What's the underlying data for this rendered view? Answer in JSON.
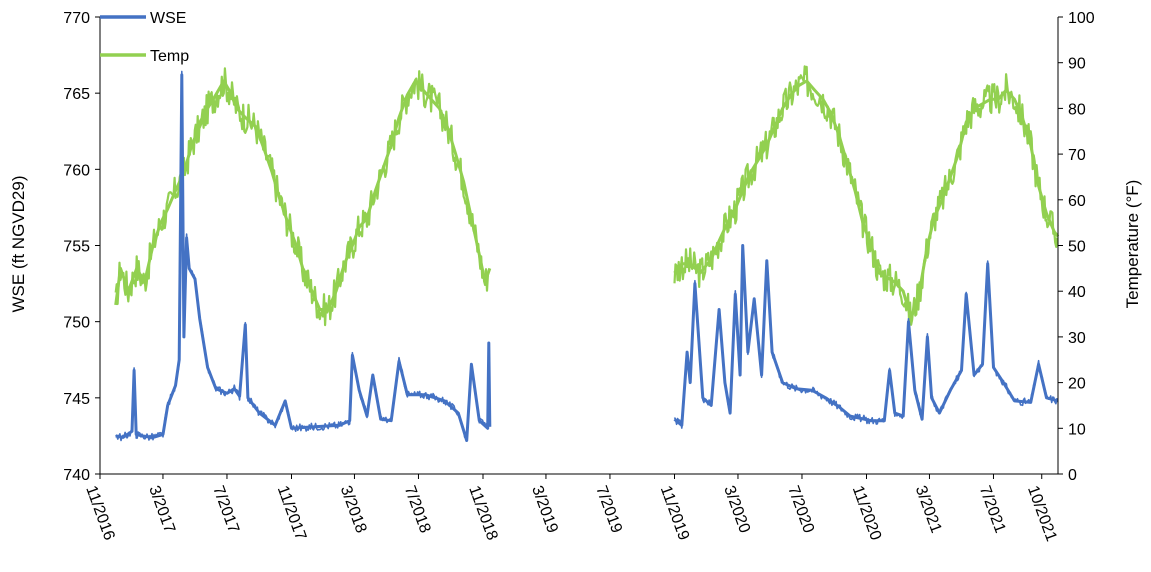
{
  "chart_data": {
    "type": "line",
    "title": "",
    "xlabel": "",
    "ylabel": "WSE (ft NGVD29)",
    "y2label": "Temperature (°F)",
    "x_range": [
      "2016-11-01",
      "2021-11-01"
    ],
    "ylim": [
      740,
      770
    ],
    "y2lim": [
      0,
      100
    ],
    "yticks": [
      740,
      745,
      750,
      755,
      760,
      765,
      770
    ],
    "y2ticks": [
      0,
      10,
      20,
      30,
      40,
      50,
      60,
      70,
      80,
      90,
      100
    ],
    "x_ticks": [
      {
        "label": "11/2016",
        "date": "2016-11-01"
      },
      {
        "label": "3/2017",
        "date": "2017-03-01"
      },
      {
        "label": "7/2017",
        "date": "2017-07-01"
      },
      {
        "label": "11/2017",
        "date": "2017-11-01"
      },
      {
        "label": "3/2018",
        "date": "2018-03-01"
      },
      {
        "label": "7/2018",
        "date": "2018-07-01"
      },
      {
        "label": "11/2018",
        "date": "2018-11-01"
      },
      {
        "label": "3/2019",
        "date": "2019-03-01"
      },
      {
        "label": "7/2019",
        "date": "2019-07-01"
      },
      {
        "label": "11/2019",
        "date": "2019-11-01"
      },
      {
        "label": "3/2020",
        "date": "2020-03-01"
      },
      {
        "label": "7/2020",
        "date": "2020-07-01"
      },
      {
        "label": "11/2020",
        "date": "2020-11-01"
      },
      {
        "label": "3/2021",
        "date": "2021-03-01"
      },
      {
        "label": "7/2021",
        "date": "2021-07-01"
      },
      {
        "label": "10/2021",
        "date": "2021-10-01"
      }
    ],
    "grid": false,
    "legend_position": "top-left",
    "series": [
      {
        "name": "WSE",
        "axis": "left",
        "color": "#4472C4",
        "segments": [
          [
            [
              "2016-12-01",
              742.5
            ],
            [
              "2016-12-15",
              742.4
            ],
            [
              "2017-01-01",
              742.8
            ],
            [
              "2017-01-05",
              746.8
            ],
            [
              "2017-01-09",
              742.6
            ],
            [
              "2017-01-20",
              742.5
            ],
            [
              "2017-02-10",
              742.4
            ],
            [
              "2017-03-01",
              742.6
            ],
            [
              "2017-03-10",
              744.5
            ],
            [
              "2017-03-25",
              745.8
            ],
            [
              "2017-04-01",
              747.5
            ],
            [
              "2017-04-06",
              766.2
            ],
            [
              "2017-04-10",
              749.0
            ],
            [
              "2017-04-15",
              755.5
            ],
            [
              "2017-04-20",
              753.5
            ],
            [
              "2017-05-01",
              752.8
            ],
            [
              "2017-05-10",
              750.2
            ],
            [
              "2017-05-25",
              747.0
            ],
            [
              "2017-06-10",
              745.6
            ],
            [
              "2017-07-01",
              745.3
            ],
            [
              "2017-07-15",
              745.6
            ],
            [
              "2017-07-25",
              745.1
            ],
            [
              "2017-08-05",
              749.8
            ],
            [
              "2017-08-10",
              745.0
            ],
            [
              "2017-09-01",
              744.0
            ],
            [
              "2017-10-01",
              743.2
            ],
            [
              "2017-10-20",
              744.8
            ],
            [
              "2017-11-01",
              743.0
            ],
            [
              "2017-12-15",
              743.1
            ],
            [
              "2018-02-01",
              743.2
            ],
            [
              "2018-02-20",
              743.5
            ],
            [
              "2018-02-25",
              747.8
            ],
            [
              "2018-03-10",
              745.5
            ],
            [
              "2018-03-25",
              743.8
            ],
            [
              "2018-04-05",
              746.5
            ],
            [
              "2018-04-20",
              743.6
            ],
            [
              "2018-05-10",
              743.5
            ],
            [
              "2018-05-25",
              747.4
            ],
            [
              "2018-06-10",
              745.2
            ],
            [
              "2018-07-15",
              745.2
            ],
            [
              "2018-08-20",
              744.8
            ],
            [
              "2018-09-15",
              744.0
            ],
            [
              "2018-10-01",
              742.2
            ],
            [
              "2018-10-10",
              747.2
            ],
            [
              "2018-10-25",
              743.5
            ],
            [
              "2018-11-10",
              743.0
            ],
            [
              "2018-11-12",
              748.6
            ],
            [
              "2018-11-14",
              743.1
            ]
          ],
          [
            [
              "2019-11-01",
              743.6
            ],
            [
              "2019-11-15",
              743.2
            ],
            [
              "2019-11-25",
              748.0
            ],
            [
              "2019-12-01",
              746.0
            ],
            [
              "2019-12-10",
              752.5
            ],
            [
              "2019-12-25",
              745.0
            ],
            [
              "2020-01-10",
              744.5
            ],
            [
              "2020-01-25",
              750.8
            ],
            [
              "2020-02-05",
              746.0
            ],
            [
              "2020-02-15",
              744.0
            ],
            [
              "2020-02-25",
              751.8
            ],
            [
              "2020-03-05",
              746.5
            ],
            [
              "2020-03-10",
              755.0
            ],
            [
              "2020-03-20",
              748.0
            ],
            [
              "2020-04-01",
              751.5
            ],
            [
              "2020-04-15",
              746.5
            ],
            [
              "2020-04-25",
              754.0
            ],
            [
              "2020-05-05",
              748.0
            ],
            [
              "2020-05-25",
              746.0
            ],
            [
              "2020-06-20",
              745.6
            ],
            [
              "2020-07-20",
              745.5
            ],
            [
              "2020-08-15",
              745.0
            ],
            [
              "2020-09-10",
              744.4
            ],
            [
              "2020-10-01",
              743.8
            ],
            [
              "2020-11-10",
              743.5
            ],
            [
              "2020-12-05",
              743.5
            ],
            [
              "2020-12-15",
              746.8
            ],
            [
              "2020-12-25",
              744.0
            ],
            [
              "2021-01-10",
              743.8
            ],
            [
              "2021-01-20",
              750.0
            ],
            [
              "2021-02-01",
              745.5
            ],
            [
              "2021-02-15",
              743.6
            ],
            [
              "2021-02-25",
              749.0
            ],
            [
              "2021-03-05",
              745.0
            ],
            [
              "2021-03-20",
              744.0
            ],
            [
              "2021-04-10",
              745.5
            ],
            [
              "2021-05-01",
              746.8
            ],
            [
              "2021-05-10",
              751.8
            ],
            [
              "2021-05-25",
              746.5
            ],
            [
              "2021-06-10",
              747.2
            ],
            [
              "2021-06-20",
              753.8
            ],
            [
              "2021-07-01",
              747.0
            ],
            [
              "2021-07-20",
              746.0
            ],
            [
              "2021-08-10",
              744.8
            ],
            [
              "2021-09-10",
              744.7
            ],
            [
              "2021-09-25",
              747.2
            ],
            [
              "2021-10-10",
              745.0
            ],
            [
              "2021-11-01",
              744.8
            ]
          ]
        ]
      },
      {
        "name": "Temp",
        "axis": "right",
        "color": "#92D050",
        "segments": [
          [
            [
              "2016-12-01",
              37
            ],
            [
              "2016-12-10",
              45
            ],
            [
              "2016-12-25",
              40
            ],
            [
              "2017-01-10",
              45
            ],
            [
              "2017-01-25",
              42
            ],
            [
              "2017-02-10",
              50
            ],
            [
              "2017-02-25",
              55
            ],
            [
              "2017-03-10",
              58
            ],
            [
              "2017-03-25",
              62
            ],
            [
              "2017-04-10",
              66
            ],
            [
              "2017-04-25",
              72
            ],
            [
              "2017-05-10",
              76
            ],
            [
              "2017-05-25",
              80
            ],
            [
              "2017-06-10",
              83
            ],
            [
              "2017-06-25",
              86
            ],
            [
              "2017-07-05",
              84
            ],
            [
              "2017-07-20",
              80
            ],
            [
              "2017-08-05",
              78
            ],
            [
              "2017-08-25",
              76
            ],
            [
              "2017-09-10",
              71
            ],
            [
              "2017-09-25",
              66
            ],
            [
              "2017-10-10",
              60
            ],
            [
              "2017-10-25",
              55
            ],
            [
              "2017-11-10",
              50
            ],
            [
              "2017-11-25",
              44
            ],
            [
              "2017-12-10",
              40
            ],
            [
              "2017-12-25",
              36
            ],
            [
              "2018-01-10",
              36
            ],
            [
              "2018-01-25",
              40
            ],
            [
              "2018-02-10",
              46
            ],
            [
              "2018-02-25",
              50
            ],
            [
              "2018-03-10",
              54
            ],
            [
              "2018-03-25",
              56
            ],
            [
              "2018-04-10",
              62
            ],
            [
              "2018-04-25",
              67
            ],
            [
              "2018-05-10",
              72
            ],
            [
              "2018-05-25",
              78
            ],
            [
              "2018-06-10",
              83
            ],
            [
              "2018-06-25",
              86
            ],
            [
              "2018-07-10",
              84
            ],
            [
              "2018-07-25",
              82
            ],
            [
              "2018-08-10",
              80
            ],
            [
              "2018-08-25",
              76
            ],
            [
              "2018-09-10",
              70
            ],
            [
              "2018-09-25",
              64
            ],
            [
              "2018-10-10",
              56
            ],
            [
              "2018-10-25",
              48
            ],
            [
              "2018-11-05",
              42
            ],
            [
              "2018-11-14",
              45
            ]
          ],
          [
            [
              "2019-11-01",
              44
            ],
            [
              "2019-11-15",
              46
            ],
            [
              "2019-12-01",
              46
            ],
            [
              "2019-12-20",
              44
            ],
            [
              "2020-01-10",
              47
            ],
            [
              "2020-01-25",
              51
            ],
            [
              "2020-02-10",
              55
            ],
            [
              "2020-02-25",
              58
            ],
            [
              "2020-03-10",
              62
            ],
            [
              "2020-03-25",
              66
            ],
            [
              "2020-04-10",
              69
            ],
            [
              "2020-04-25",
              72
            ],
            [
              "2020-05-10",
              76
            ],
            [
              "2020-05-25",
              80
            ],
            [
              "2020-06-10",
              83
            ],
            [
              "2020-06-25",
              85
            ],
            [
              "2020-07-10",
              86
            ],
            [
              "2020-07-25",
              84
            ],
            [
              "2020-08-10",
              82
            ],
            [
              "2020-08-25",
              79
            ],
            [
              "2020-09-10",
              74
            ],
            [
              "2020-09-25",
              68
            ],
            [
              "2020-10-10",
              62
            ],
            [
              "2020-10-25",
              55
            ],
            [
              "2020-11-10",
              50
            ],
            [
              "2020-11-25",
              44
            ],
            [
              "2020-12-10",
              43
            ],
            [
              "2020-12-25",
              42
            ],
            [
              "2021-01-10",
              40
            ],
            [
              "2021-01-25",
              34
            ],
            [
              "2021-02-10",
              40
            ],
            [
              "2021-02-25",
              50
            ],
            [
              "2021-03-10",
              56
            ],
            [
              "2021-03-25",
              60
            ],
            [
              "2021-04-10",
              65
            ],
            [
              "2021-04-25",
              70
            ],
            [
              "2021-05-10",
              77
            ],
            [
              "2021-05-25",
              80
            ],
            [
              "2021-06-10",
              81
            ],
            [
              "2021-06-25",
              82
            ],
            [
              "2021-07-10",
              82
            ],
            [
              "2021-07-25",
              84
            ],
            [
              "2021-08-10",
              82
            ],
            [
              "2021-08-25",
              78
            ],
            [
              "2021-09-10",
              72
            ],
            [
              "2021-09-25",
              63
            ],
            [
              "2021-10-10",
              57
            ],
            [
              "2021-10-25",
              53
            ],
            [
              "2021-11-01",
              52
            ]
          ]
        ]
      }
    ]
  }
}
